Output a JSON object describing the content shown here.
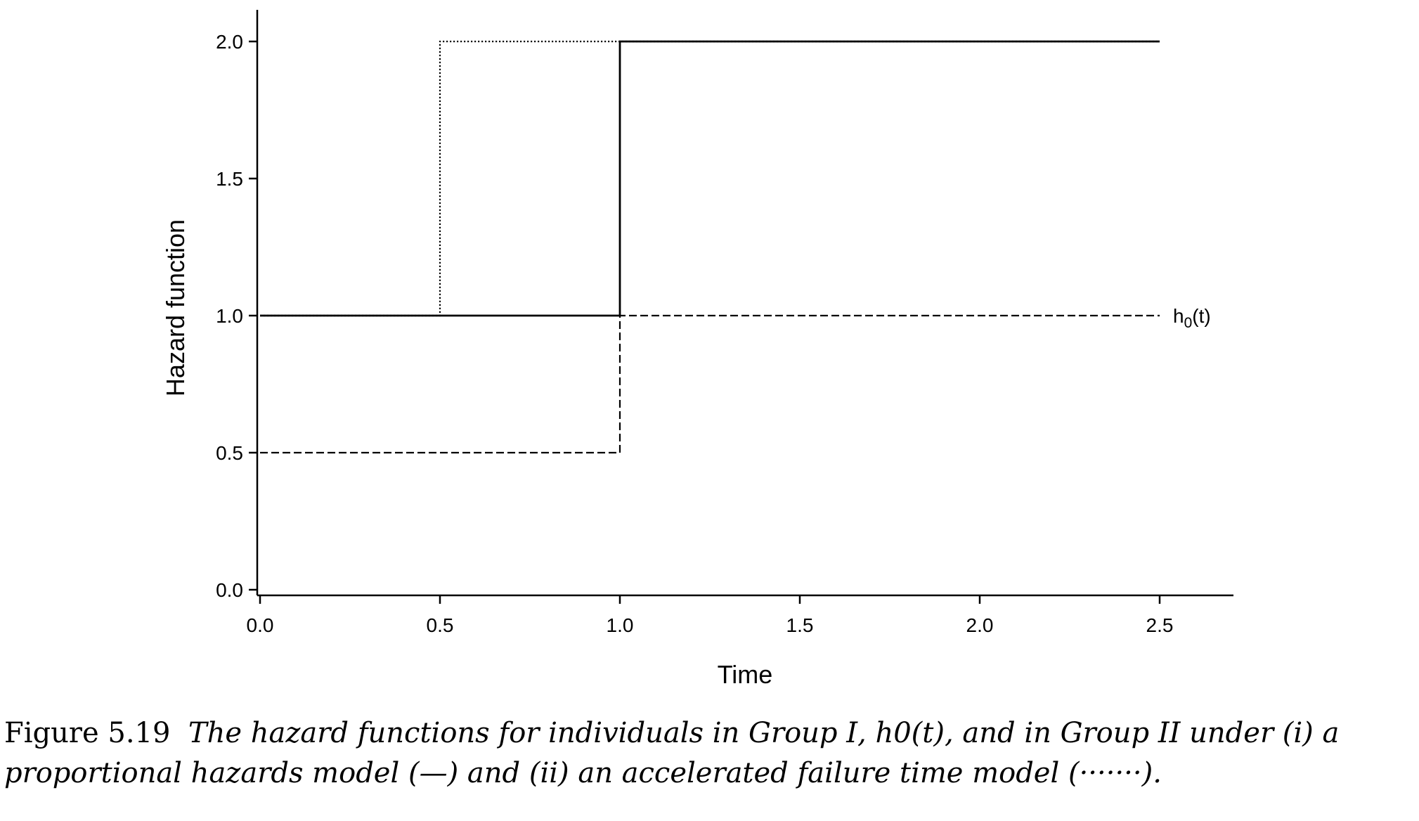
{
  "chart_data": {
    "type": "line",
    "xlabel": "Time",
    "ylabel": "Hazard function",
    "xlim": [
      0.0,
      2.7
    ],
    "ylim": [
      0.0,
      2.1
    ],
    "x_ticks": [
      "0.0",
      "0.5",
      "1.0",
      "1.5",
      "2.0",
      "2.5"
    ],
    "y_ticks": [
      "0.0",
      "0.5",
      "1.0",
      "1.5",
      "2.0"
    ],
    "grid": false,
    "series": [
      {
        "style": "solid",
        "step": true,
        "points": [
          [
            0.0,
            1.0
          ],
          [
            1.0,
            1.0
          ],
          [
            1.0,
            2.0
          ],
          [
            2.5,
            2.0
          ]
        ]
      },
      {
        "style": "dashed",
        "step": true,
        "points": [
          [
            0.0,
            0.5
          ],
          [
            1.0,
            0.5
          ],
          [
            1.0,
            1.0
          ],
          [
            2.5,
            1.0
          ]
        ]
      },
      {
        "style": "dotted",
        "step": true,
        "points": [
          [
            0.0,
            1.0
          ],
          [
            0.5,
            1.0
          ],
          [
            0.5,
            2.0
          ],
          [
            2.5,
            2.0
          ]
        ]
      }
    ],
    "annotations": [
      {
        "text": "h0(t)",
        "x": 2.5,
        "y": 1.0
      }
    ]
  },
  "caption": {
    "number": "Figure 5.19",
    "line1": "The hazard functions for individuals in Group I, h0(t), and in Group II under (i) a",
    "line2": "proportional hazards model (—) and (ii) an accelerated failure time model (·······)."
  }
}
